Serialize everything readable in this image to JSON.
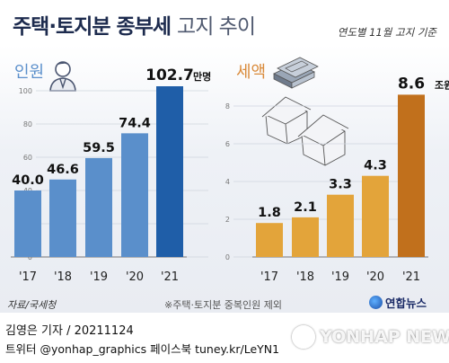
{
  "header": {
    "title_bold": "주택·토지분 종부세",
    "title_light": "고지 추이",
    "note": "연도별 11월 고지 기준"
  },
  "colors": {
    "blue_bar": "#5a8fcb",
    "blue_bar_last": "#1f5ea8",
    "orange_bar": "#e3a43a",
    "orange_bar_last": "#c1701c",
    "title": "#1d2b4e"
  },
  "icons": [
    "person-icon",
    "money-stack-icon",
    "houses-icon"
  ],
  "chart_data": [
    {
      "type": "bar",
      "title": "인원",
      "unit": "만명",
      "categories": [
        "'17",
        "'18",
        "'19",
        "'20",
        "'21"
      ],
      "values": [
        40.0,
        46.6,
        59.5,
        74.4,
        102.7
      ],
      "value_labels": [
        "40.0",
        "46.6",
        "59.5",
        "74.4",
        "102.7"
      ],
      "ylim": [
        0,
        110
      ],
      "yticks": [
        0,
        20,
        40,
        60,
        80,
        100
      ],
      "grid": true
    },
    {
      "type": "bar",
      "title": "세액",
      "unit": "조원",
      "categories": [
        "'17",
        "'18",
        "'19",
        "'20",
        "'21"
      ],
      "values": [
        1.8,
        2.1,
        3.3,
        4.3,
        8.6
      ],
      "value_labels": [
        "1.8",
        "2.1",
        "3.3",
        "4.3",
        "8.6"
      ],
      "ylim": [
        0,
        9
      ],
      "yticks": [
        0,
        2,
        4,
        6,
        8
      ],
      "grid": true
    }
  ],
  "footer": {
    "source": "자료/국세청",
    "footnote": "※주택·토지분 중복인원 제외",
    "brand": "연합뉴스",
    "byline": "김영은 기자 / 20211124",
    "social": "트위터 @yonhap_graphics  페이스북 tuney.kr/LeYN1",
    "watermark": "YONHAP NEWS"
  }
}
